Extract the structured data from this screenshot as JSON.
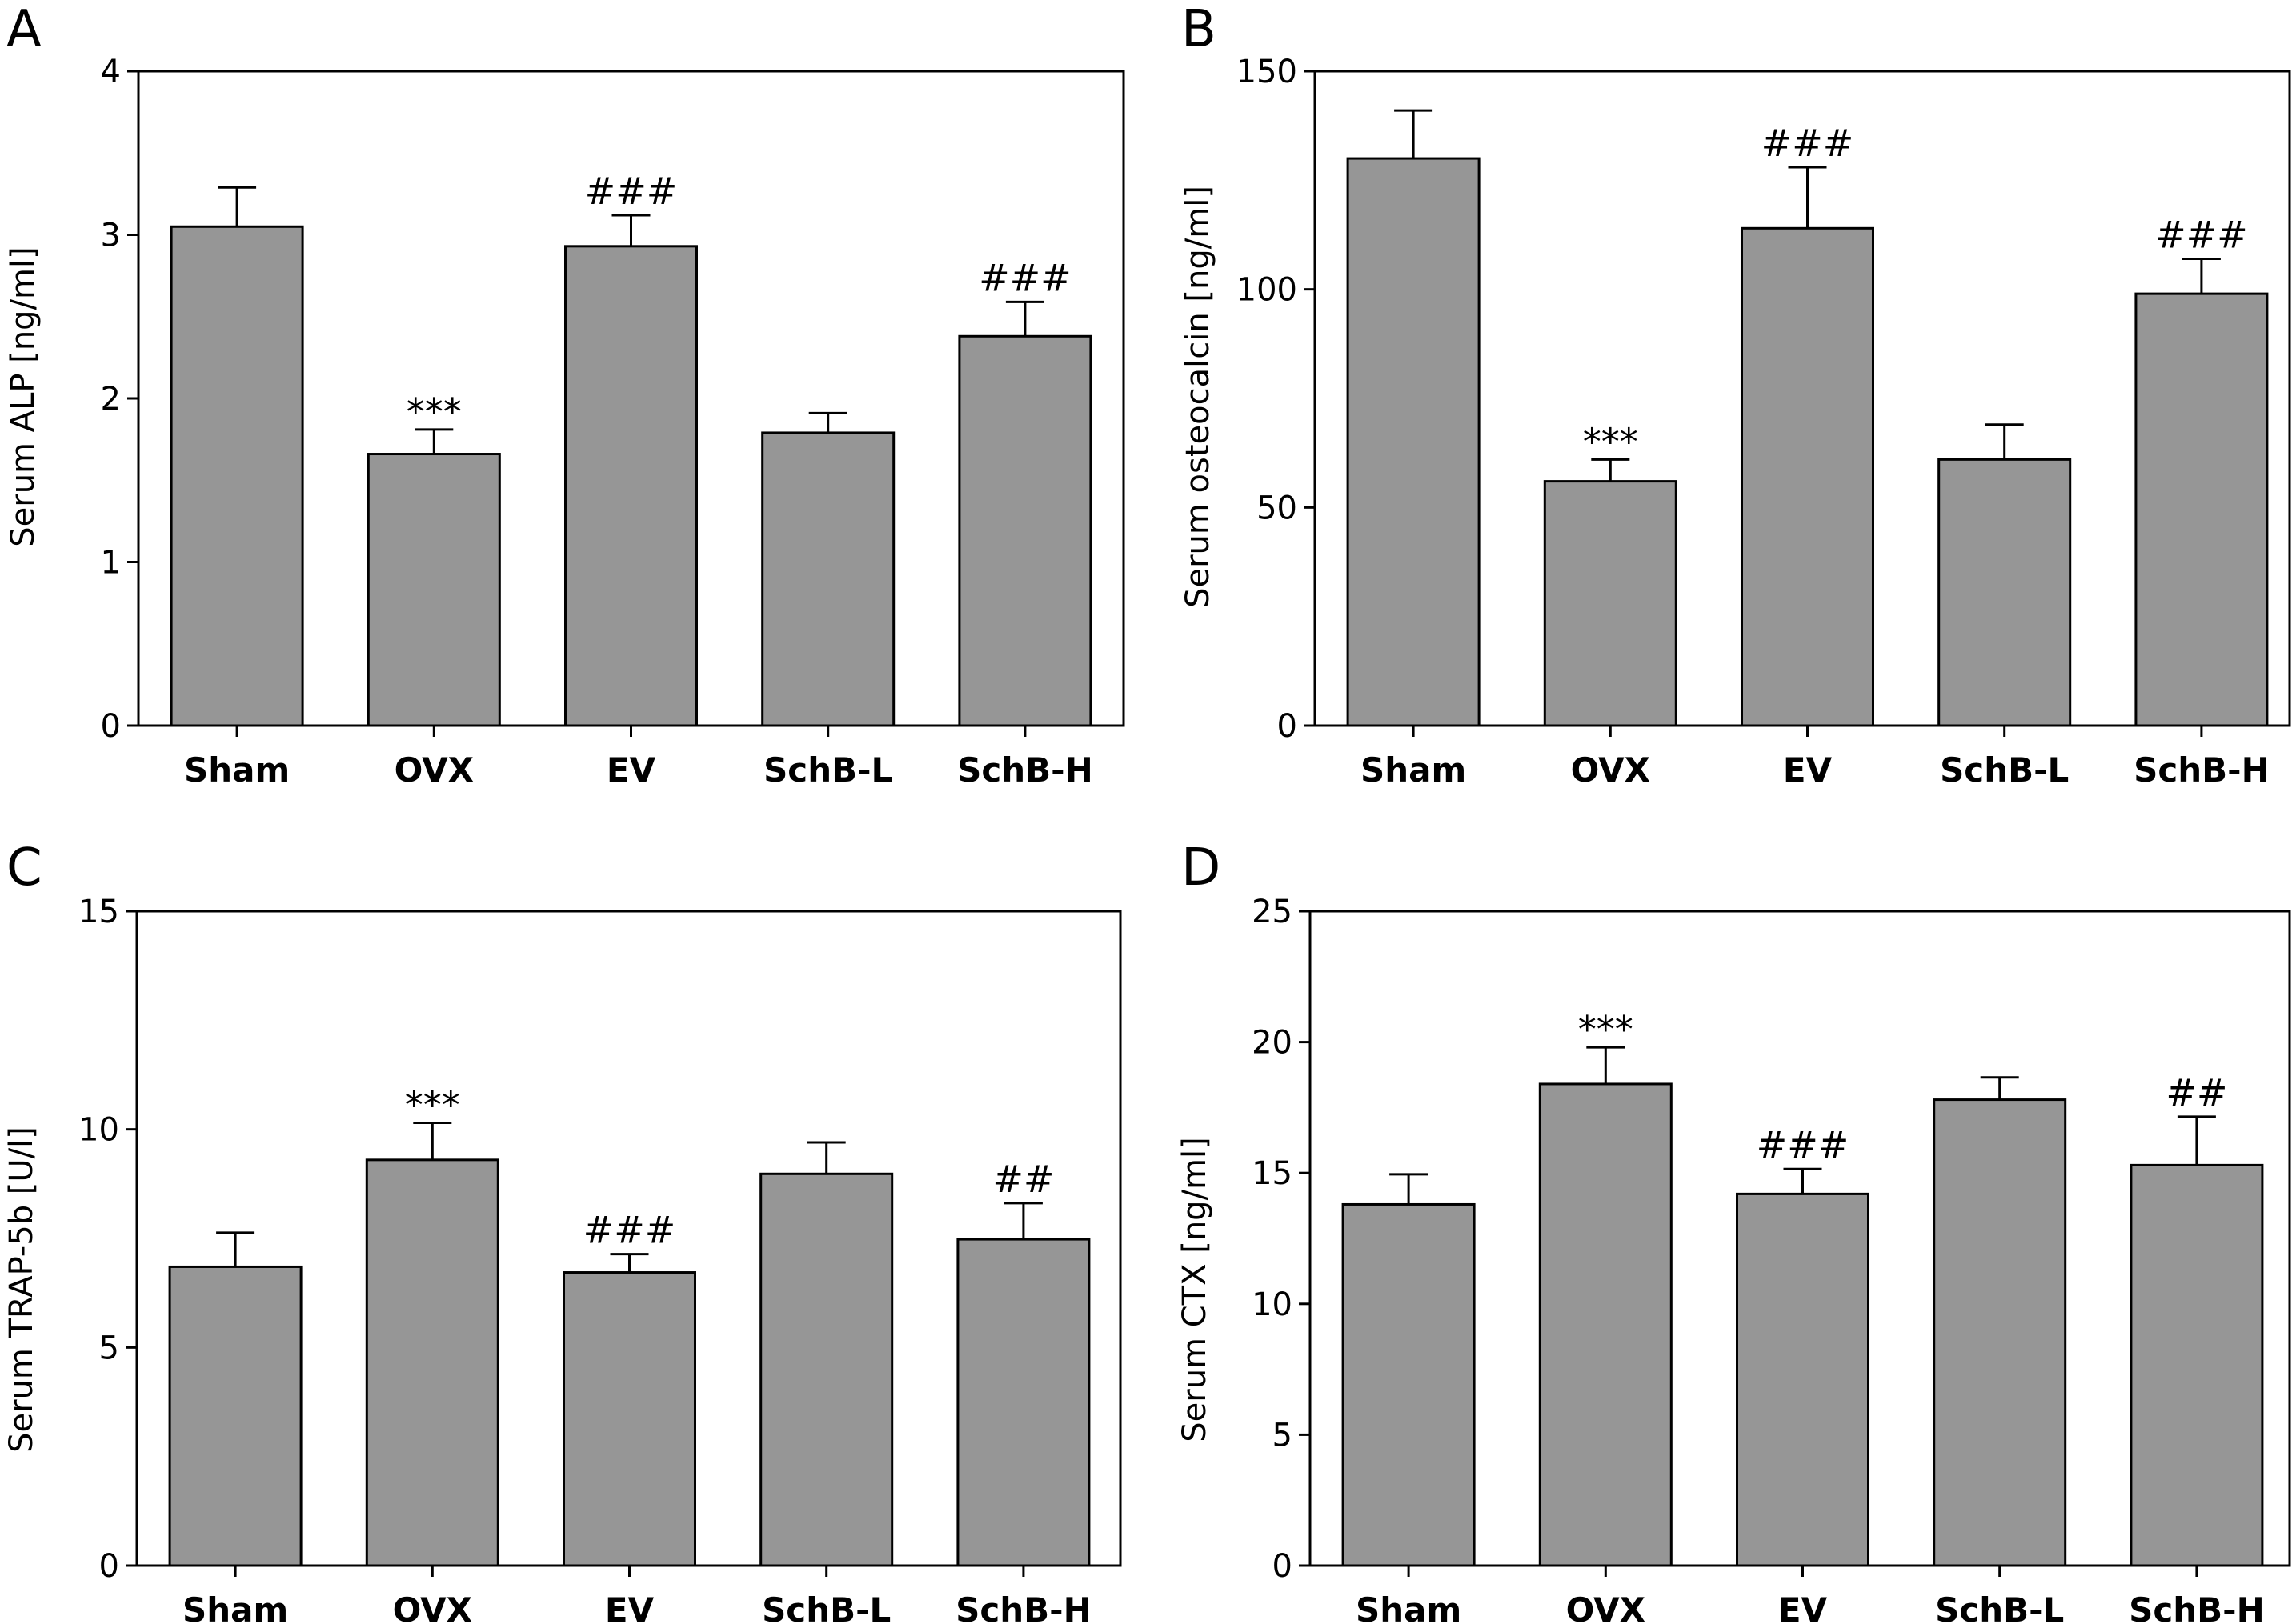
{
  "colors": {
    "bar_fill": "#969696",
    "stroke": "#000000",
    "background": "#ffffff"
  },
  "chart_data": [
    {
      "panel": "A",
      "type": "bar",
      "categories": [
        "Sham",
        "OVX",
        "EV",
        "SchB-L",
        "SchB-H"
      ],
      "values": [
        3.05,
        1.66,
        2.93,
        1.79,
        2.38
      ],
      "errors": [
        0.24,
        0.15,
        0.19,
        0.12,
        0.21
      ],
      "annotations": [
        "",
        "***",
        "###",
        "",
        "###"
      ],
      "ylabel": "Serum ALP [ng/ml]",
      "ylim": [
        0,
        4
      ],
      "yticks": [
        0,
        1,
        2,
        3,
        4
      ],
      "grid": false
    },
    {
      "panel": "B",
      "type": "bar",
      "categories": [
        "Sham",
        "OVX",
        "EV",
        "SchB-L",
        "SchB-H"
      ],
      "values": [
        130,
        56,
        114,
        61,
        99
      ],
      "errors": [
        11,
        5,
        14,
        8,
        8
      ],
      "annotations": [
        "",
        "***",
        "###",
        "",
        "###"
      ],
      "ylabel": "Serum osteocalcin [ng/ml]",
      "ylim": [
        0,
        150
      ],
      "yticks": [
        0,
        50,
        100,
        150
      ],
      "grid": false
    },
    {
      "panel": "C",
      "type": "bar",
      "categories": [
        "Sham",
        "OVX",
        "EV",
        "SchB-L",
        "SchB-H"
      ],
      "values": [
        6.85,
        9.3,
        6.72,
        8.98,
        7.48
      ],
      "errors": [
        0.78,
        0.85,
        0.42,
        0.72,
        0.83
      ],
      "annotations": [
        "",
        "***",
        "###",
        "",
        "##"
      ],
      "ylabel": "Serum TRAP-5b [U/l]",
      "ylim": [
        0,
        15
      ],
      "yticks": [
        0,
        5,
        10,
        15
      ],
      "grid": false
    },
    {
      "panel": "D",
      "type": "bar",
      "categories": [
        "Sham",
        "OVX",
        "EV",
        "SchB-L",
        "SchB-H"
      ],
      "values": [
        13.8,
        18.4,
        14.2,
        17.8,
        15.3
      ],
      "errors": [
        1.15,
        1.4,
        0.95,
        0.85,
        1.85
      ],
      "annotations": [
        "",
        "***",
        "###",
        "",
        "##"
      ],
      "ylabel": "Serum CTX [ng/ml]",
      "ylim": [
        0,
        25
      ],
      "yticks": [
        0,
        5,
        10,
        15,
        20,
        25
      ],
      "grid": false
    }
  ]
}
